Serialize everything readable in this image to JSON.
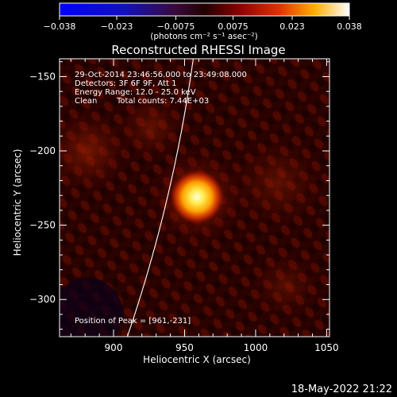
{
  "chart_data": {
    "type": "heatmap",
    "title": "Reconstructed RHESSI Image",
    "xlabel": "Heliocentric X (arcsec)",
    "ylabel": "Heliocentric Y (arcsec)",
    "xlim": [
      862,
      1052
    ],
    "ylim": [
      -325,
      -138
    ],
    "x_ticks": [
      900,
      950,
      1000,
      1050
    ],
    "y_ticks": [
      -150,
      -200,
      -250,
      -300
    ],
    "x_tick_labels": [
      "900",
      "950",
      "1000",
      "1050"
    ],
    "y_tick_labels": [
      "−150",
      "−200",
      "−250",
      "−300"
    ],
    "colorbar": {
      "ticks": [
        -0.038,
        -0.023,
        -0.0075,
        0.0075,
        0.023,
        0.038
      ],
      "tick_labels": [
        "−0.038",
        "−0.023",
        "−0.0075",
        "0.0075",
        "0.023",
        "0.038"
      ],
      "unit_label": "(photons cm⁻² s⁻¹ asec⁻²)",
      "range": [
        -0.038,
        0.038
      ]
    },
    "annotations": {
      "time_range": "29-Oct-2014 23:46:56.000 to 23:49:08.000",
      "detectors": "Detectors: 3F 6F 9F, Att 1",
      "energy_range": "Energy Range: 12.0 - 25.0 keV",
      "method": "Clean",
      "total_counts": "Total counts: 7.44E+03",
      "peak": "Position of Peak = [961,-231]"
    },
    "peak_position": [
      961,
      -231
    ],
    "limb_visible": true,
    "footer_date": "18-May-2022 21:22"
  }
}
